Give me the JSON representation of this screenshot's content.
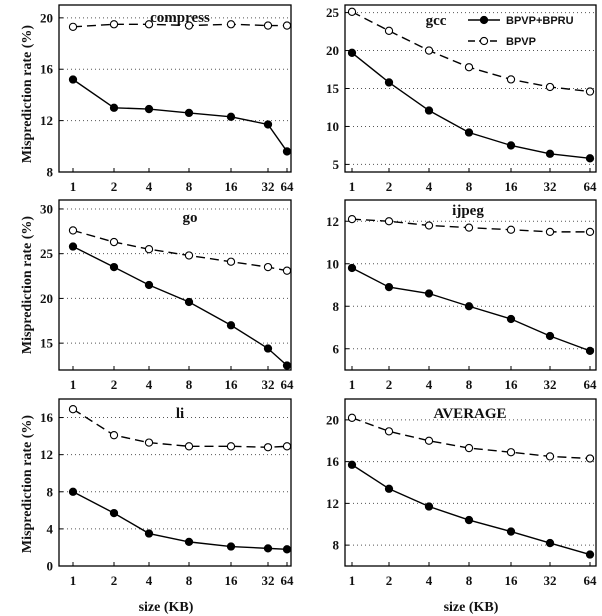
{
  "chart_data": {
    "type": "line",
    "x": [
      "1",
      "2",
      "4",
      "8",
      "16",
      "32",
      "64"
    ],
    "xlabel": "size (KB)",
    "ylabel": "Misprediction rate (%)",
    "legend": {
      "placement": "top-right of gcc panel",
      "entries": [
        "BPVP+BPRU",
        "BPVP"
      ]
    },
    "styles": {
      "BPVP+BPRU": {
        "line": "solid",
        "marker": "filled-circle",
        "color": "#000000"
      },
      "BPVP": {
        "line": "dashed",
        "marker": "open-circle",
        "color": "#000000"
      }
    },
    "grid": "horizontal dotted",
    "panels": [
      {
        "title": "compress",
        "ylim": [
          8,
          21
        ],
        "yticks": [
          8,
          12,
          16,
          20
        ],
        "series": [
          {
            "name": "BPVP+BPRU",
            "values": [
              15.2,
              13.0,
              12.9,
              12.6,
              12.3,
              11.7,
              9.6
            ]
          },
          {
            "name": "BPVP",
            "values": [
              19.3,
              19.5,
              19.5,
              19.4,
              19.5,
              19.4,
              19.4
            ]
          }
        ]
      },
      {
        "title": "gcc",
        "ylim": [
          4,
          26
        ],
        "yticks": [
          5,
          10,
          15,
          20,
          25
        ],
        "series": [
          {
            "name": "BPVP+BPRU",
            "values": [
              19.7,
              15.8,
              12.1,
              9.2,
              7.5,
              6.4,
              5.8
            ]
          },
          {
            "name": "BPVP",
            "values": [
              25.1,
              22.6,
              20.0,
              17.8,
              16.2,
              15.2,
              14.6
            ]
          }
        ]
      },
      {
        "title": "go",
        "ylim": [
          12,
          31
        ],
        "yticks": [
          15,
          20,
          25,
          30
        ],
        "series": [
          {
            "name": "BPVP+BPRU",
            "values": [
              25.8,
              23.5,
              21.5,
              19.6,
              17.0,
              14.4,
              12.5
            ]
          },
          {
            "name": "BPVP",
            "values": [
              27.6,
              26.3,
              25.5,
              24.8,
              24.1,
              23.5,
              23.1
            ]
          }
        ]
      },
      {
        "title": "ijpeg",
        "ylim": [
          5,
          13
        ],
        "yticks": [
          6,
          8,
          10,
          12
        ],
        "series": [
          {
            "name": "BPVP+BPRU",
            "values": [
              9.8,
              8.9,
              8.6,
              8.0,
              7.4,
              6.6,
              5.9
            ]
          },
          {
            "name": "BPVP",
            "values": [
              12.1,
              12.0,
              11.8,
              11.7,
              11.6,
              11.5,
              11.5
            ]
          }
        ]
      },
      {
        "title": "li",
        "ylim": [
          0,
          18
        ],
        "yticks": [
          0,
          4,
          8,
          12,
          16
        ],
        "series": [
          {
            "name": "BPVP+BPRU",
            "values": [
              8.0,
              5.7,
              3.5,
              2.6,
              2.1,
              1.9,
              1.8
            ]
          },
          {
            "name": "BPVP",
            "values": [
              16.9,
              14.1,
              13.3,
              12.9,
              12.9,
              12.8,
              12.9
            ]
          }
        ]
      },
      {
        "title": "AVERAGE",
        "ylim": [
          6,
          22
        ],
        "yticks": [
          8,
          12,
          16,
          20
        ],
        "series": [
          {
            "name": "BPVP+BPRU",
            "values": [
              15.7,
              13.4,
              11.7,
              10.4,
              9.3,
              8.2,
              7.1
            ]
          },
          {
            "name": "BPVP",
            "values": [
              20.2,
              18.9,
              18.0,
              17.3,
              16.9,
              16.5,
              16.3
            ]
          }
        ]
      }
    ]
  }
}
